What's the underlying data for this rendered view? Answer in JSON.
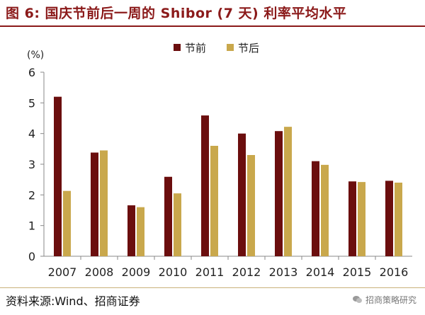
{
  "figure": {
    "title": "图 6:  国庆节前后一周的 Shibor (7 天) 利率平均水平",
    "source": "资料来源:Wind、招商证券",
    "watermark": "招商策略研究"
  },
  "chart_data": {
    "type": "bar",
    "title": "",
    "xlabel": "",
    "ylabel": "(%)",
    "ylim": [
      0,
      6
    ],
    "yticks": [
      0,
      1,
      2,
      3,
      4,
      5,
      6
    ],
    "grid": false,
    "legend_position": "top-center",
    "categories": [
      "2007",
      "2008",
      "2009",
      "2010",
      "2011",
      "2012",
      "2013",
      "2014",
      "2015",
      "2016"
    ],
    "series": [
      {
        "name": "节前",
        "color": "#6b0e0e",
        "values": [
          5.2,
          3.38,
          1.66,
          2.59,
          4.59,
          4.0,
          4.08,
          3.1,
          2.44,
          2.46
        ]
      },
      {
        "name": "节后",
        "color": "#c9a84c",
        "values": [
          2.13,
          3.45,
          1.6,
          2.05,
          3.6,
          3.3,
          4.22,
          2.98,
          2.42,
          2.4
        ]
      }
    ]
  }
}
